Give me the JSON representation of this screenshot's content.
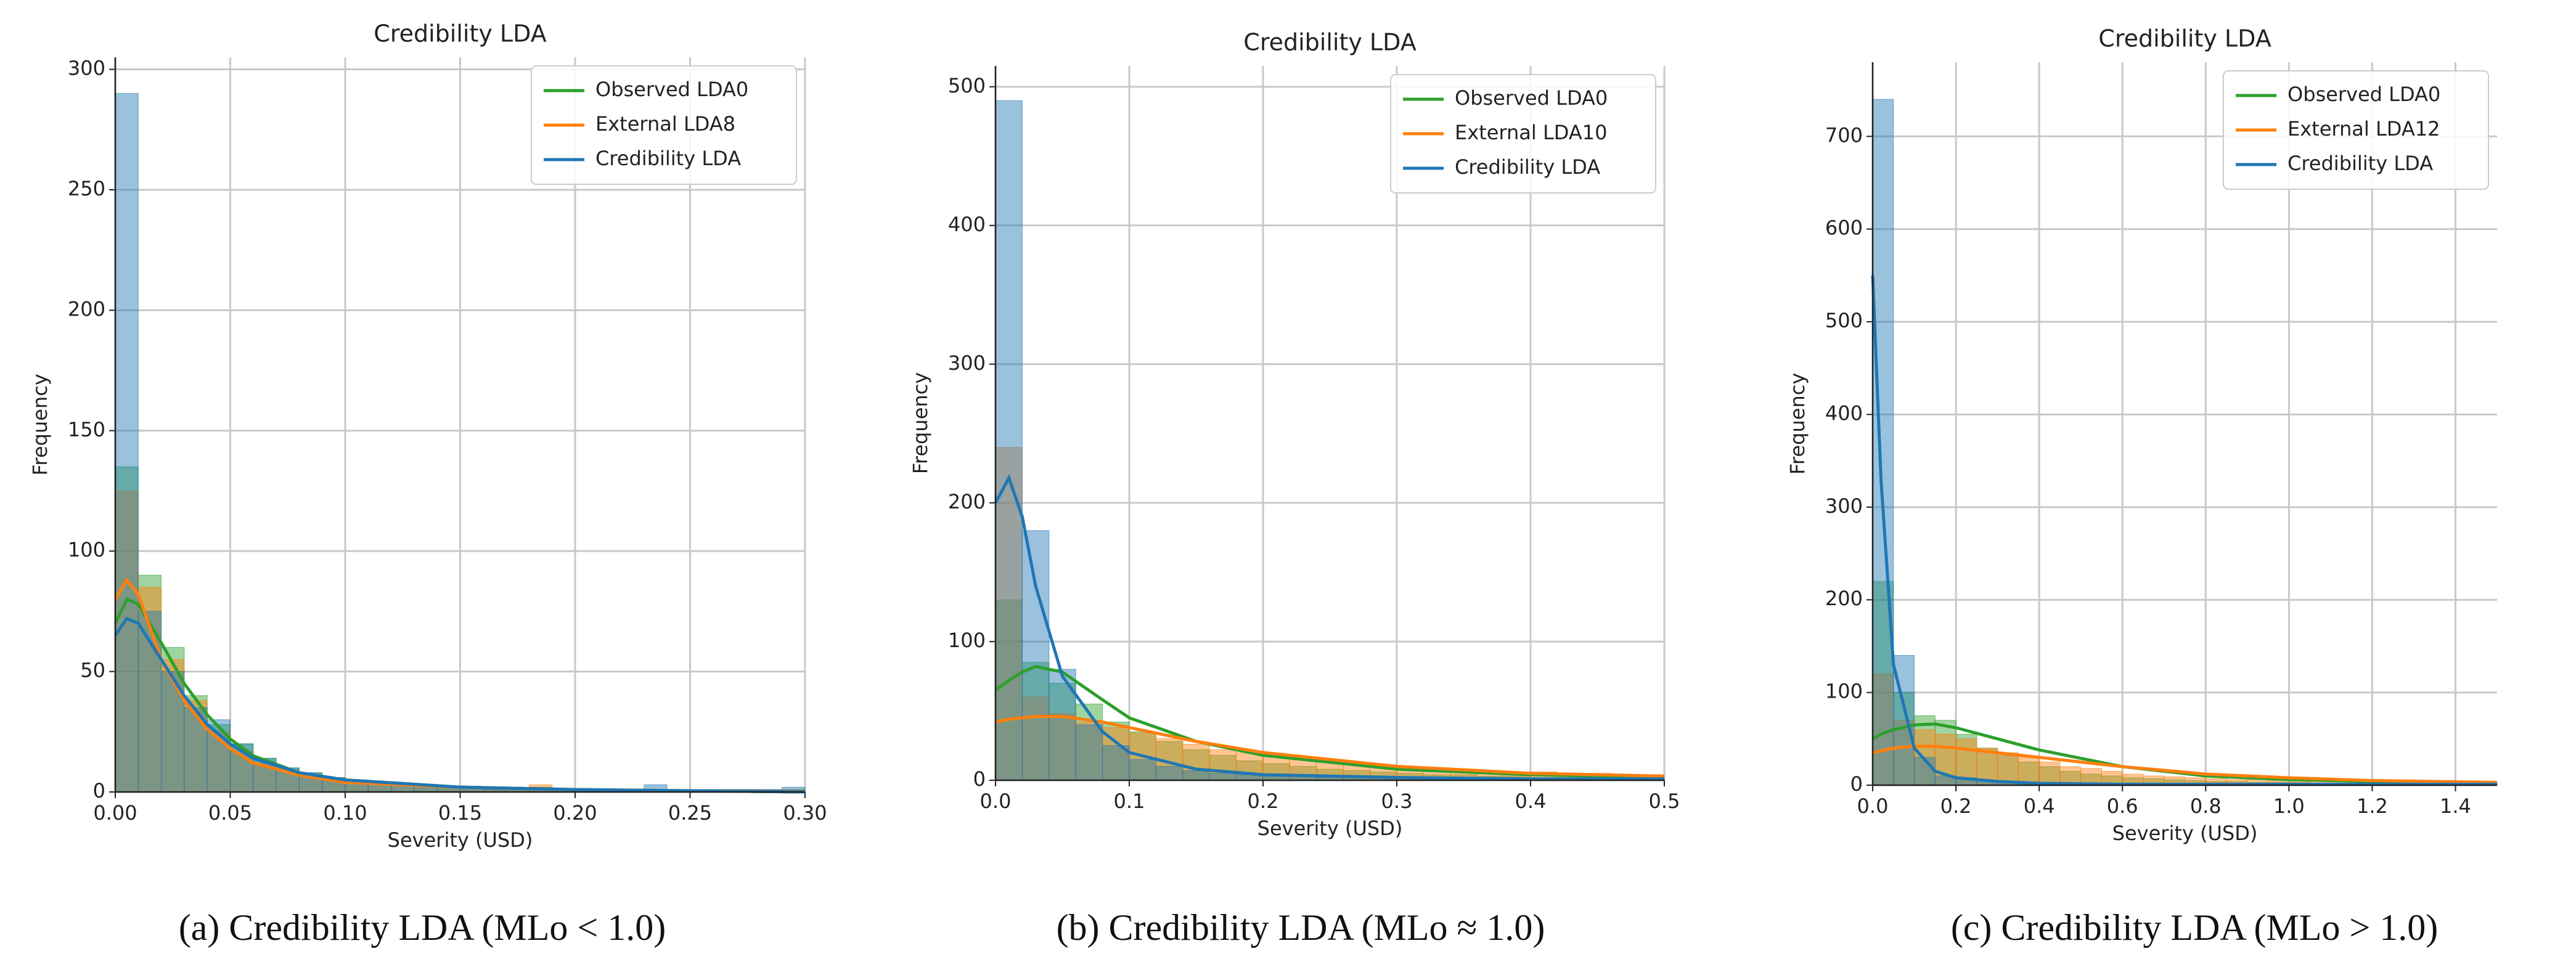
{
  "chart_data": [
    {
      "type": "histogram",
      "title": "Credibility LDA",
      "xlabel": "Severity (USD)",
      "ylabel": "Frequency",
      "caption": "(a) Credibility LDA (MLo < 1.0)",
      "xlim": [
        0,
        0.3
      ],
      "ylim": [
        0,
        305
      ],
      "xticks": [
        {
          "value": 0,
          "label": "0.00"
        },
        0.05,
        {
          "value": 0.1,
          "label": "0.10"
        },
        0.15,
        {
          "value": 0.2,
          "label": "0.20"
        },
        0.25,
        {
          "value": 0.3,
          "label": "0.30"
        }
      ],
      "yticks": [
        0,
        50,
        100,
        150,
        200,
        250,
        300
      ],
      "grid": true,
      "legend": "upper right",
      "bins": [
        0,
        0.01,
        0.02,
        0.03,
        0.04,
        0.05,
        0.06,
        0.07,
        0.08,
        0.09,
        0.1,
        0.11,
        0.12,
        0.13,
        0.14,
        0.15,
        0.16,
        0.17,
        0.18,
        0.19,
        0.2,
        0.21,
        0.22,
        0.23,
        0.24,
        0.25,
        0.26,
        0.27,
        0.28,
        0.29,
        0.3
      ],
      "kde_x": [
        0,
        0.005,
        0.01,
        0.02,
        0.03,
        0.04,
        0.05,
        0.06,
        0.08,
        0.1,
        0.15,
        0.2,
        0.3
      ],
      "series": [
        {
          "name": "Observed LDA0",
          "color": "#2ca02c",
          "values": [
            135,
            90,
            60,
            40,
            28,
            20,
            14,
            10,
            8,
            6,
            5,
            4,
            3,
            3,
            2,
            2,
            2,
            1,
            2,
            1,
            1,
            1,
            1,
            1,
            1,
            1,
            1,
            1,
            1,
            1
          ],
          "kde_y": [
            70,
            80,
            78,
            62,
            45,
            32,
            22,
            15,
            8,
            5,
            2,
            1,
            0
          ]
        },
        {
          "name": "External LDA8",
          "color": "#ff7f0e",
          "values": [
            125,
            85,
            55,
            38,
            25,
            17,
            12,
            9,
            7,
            5,
            4,
            3,
            3,
            2,
            2,
            2,
            1,
            1,
            3,
            1,
            1,
            1,
            1,
            1,
            1,
            1,
            1,
            1,
            1,
            1
          ],
          "kde_y": [
            80,
            88,
            82,
            55,
            38,
            26,
            18,
            12,
            7,
            4,
            2,
            1,
            0
          ]
        },
        {
          "name": "Credibility LDA",
          "color": "#1f77b4",
          "values": [
            290,
            75,
            50,
            35,
            30,
            20,
            14,
            10,
            8,
            6,
            5,
            4,
            3,
            3,
            2,
            2,
            1,
            1,
            1,
            1,
            1,
            1,
            1,
            3,
            1,
            1,
            1,
            1,
            1,
            2
          ],
          "kde_y": [
            65,
            72,
            70,
            55,
            40,
            28,
            20,
            14,
            8,
            5,
            2,
            1,
            0
          ]
        }
      ]
    },
    {
      "type": "histogram",
      "title": "Credibility LDA",
      "xlabel": "Severity (USD)",
      "ylabel": "Frequency",
      "caption": "(b) Credibility LDA (MLo ≈ 1.0)",
      "xlim": [
        0,
        0.5
      ],
      "ylim": [
        0,
        515
      ],
      "xticks": [
        {
          "value": 0,
          "label": "0.0"
        },
        0.1,
        0.2,
        0.3,
        0.4,
        0.5
      ],
      "yticks": [
        0,
        100,
        200,
        300,
        400,
        500
      ],
      "grid": true,
      "legend": "upper right",
      "bins": [
        0,
        0.02,
        0.04,
        0.06,
        0.08,
        0.1,
        0.12,
        0.14,
        0.16,
        0.18,
        0.2,
        0.22,
        0.24,
        0.26,
        0.28,
        0.3,
        0.32,
        0.34,
        0.36,
        0.38,
        0.4,
        0.42,
        0.44,
        0.46,
        0.48,
        0.5
      ],
      "kde_x": [
        0,
        0.01,
        0.02,
        0.03,
        0.05,
        0.08,
        0.1,
        0.15,
        0.2,
        0.3,
        0.4,
        0.5
      ],
      "series": [
        {
          "name": "Observed LDA0",
          "color": "#2ca02c",
          "values": [
            130,
            85,
            70,
            55,
            42,
            35,
            28,
            22,
            18,
            14,
            12,
            10,
            8,
            7,
            6,
            5,
            4,
            4,
            3,
            3,
            2,
            2,
            2,
            2,
            2
          ],
          "kde_y": [
            65,
            72,
            78,
            82,
            78,
            58,
            45,
            28,
            18,
            8,
            4,
            2
          ]
        },
        {
          "name": "External LDA10",
          "color": "#ff7f0e",
          "values": [
            240,
            60,
            48,
            42,
            38,
            34,
            30,
            26,
            22,
            20,
            18,
            16,
            14,
            12,
            11,
            10,
            9,
            8,
            7,
            6,
            6,
            5,
            5,
            4,
            4
          ],
          "kde_y": [
            42,
            44,
            45,
            46,
            46,
            42,
            38,
            28,
            20,
            10,
            5,
            3
          ]
        },
        {
          "name": "Credibility LDA",
          "color": "#1f77b4",
          "values": [
            490,
            180,
            80,
            40,
            25,
            15,
            10,
            7,
            5,
            4,
            3,
            3,
            2,
            2,
            2,
            1,
            1,
            1,
            1,
            1,
            1,
            1,
            1,
            1,
            1
          ],
          "kde_y": [
            200,
            218,
            190,
            140,
            75,
            35,
            20,
            8,
            4,
            2,
            1,
            1
          ]
        }
      ]
    },
    {
      "type": "histogram",
      "title": "Credibility LDA",
      "xlabel": "Severity (USD)",
      "ylabel": "Frequency",
      "caption": "(c) Credibility LDA (MLo > 1.0)",
      "xlim": [
        0,
        1.5
      ],
      "ylim": [
        0,
        780
      ],
      "xticks": [
        {
          "value": 0,
          "label": "0.0"
        },
        0.2,
        0.4,
        0.6,
        0.8,
        {
          "value": 1,
          "label": "1.0"
        },
        1.2,
        1.4
      ],
      "yticks": [
        0,
        100,
        200,
        300,
        400,
        500,
        600,
        700
      ],
      "grid": true,
      "legend": "upper right",
      "bins": [
        0,
        0.05,
        0.1,
        0.15,
        0.2,
        0.25,
        0.3,
        0.35,
        0.4,
        0.45,
        0.5,
        0.55,
        0.6,
        0.65,
        0.7,
        0.75,
        0.8,
        0.85,
        0.9,
        0.95,
        1,
        1.05,
        1.1,
        1.15,
        1.2,
        1.25,
        1.3,
        1.35,
        1.4,
        1.45,
        1.5
      ],
      "kde_x": [
        0,
        0.02,
        0.05,
        0.1,
        0.15,
        0.2,
        0.3,
        0.4,
        0.6,
        0.8,
        1,
        1.2,
        1.5
      ],
      "series": [
        {
          "name": "Observed LDA0",
          "color": "#2ca02c",
          "values": [
            220,
            100,
            75,
            70,
            55,
            40,
            32,
            25,
            20,
            15,
            12,
            10,
            8,
            7,
            6,
            5,
            4,
            4,
            3,
            3,
            3,
            2,
            2,
            2,
            2,
            2,
            2,
            1,
            1,
            1
          ],
          "kde_y": [
            50,
            55,
            60,
            65,
            66,
            62,
            50,
            38,
            20,
            10,
            6,
            4,
            2
          ]
        },
        {
          "name": "External LDA12",
          "color": "#ff7f0e",
          "values": [
            120,
            70,
            60,
            55,
            50,
            40,
            35,
            30,
            25,
            20,
            18,
            15,
            12,
            10,
            9,
            8,
            7,
            6,
            6,
            5,
            5,
            4,
            4,
            4,
            3,
            3,
            3,
            3,
            3,
            3
          ],
          "kde_y": [
            35,
            37,
            40,
            42,
            42,
            40,
            35,
            30,
            20,
            12,
            8,
            5,
            3
          ]
        },
        {
          "name": "Credibility LDA",
          "color": "#1f77b4",
          "values": [
            740,
            140,
            30,
            10,
            8,
            5,
            3,
            2,
            2,
            1,
            1,
            1,
            1,
            1,
            1,
            1,
            1,
            1,
            1,
            1,
            1,
            1,
            1,
            1,
            1,
            1,
            1,
            1,
            1,
            1
          ],
          "kde_y": [
            550,
            330,
            130,
            40,
            15,
            8,
            4,
            2,
            1,
            1,
            1,
            1,
            1
          ]
        }
      ]
    }
  ]
}
